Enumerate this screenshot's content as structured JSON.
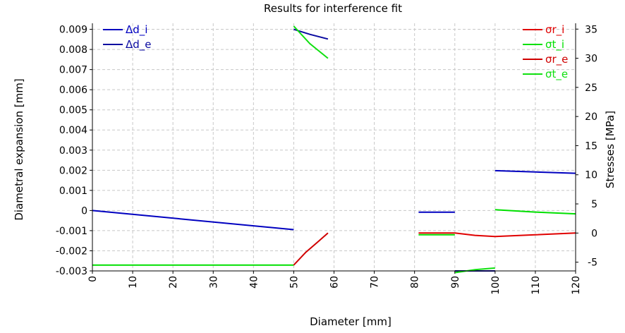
{
  "chart_data": {
    "type": "line",
    "title": "Results for interference fit",
    "xlabel": "Diameter [mm]",
    "ylabel_left": "Diametral expansion [mm]",
    "ylabel_right": "Stresses [MPa]",
    "xlim": [
      0,
      120
    ],
    "ylim_left": [
      -0.003,
      0.0093
    ],
    "ylim_right": [
      -6.5,
      36
    ],
    "x_ticks": [
      "0",
      "10",
      "20",
      "30",
      "40",
      "50",
      "60",
      "70",
      "80",
      "90",
      "100",
      "110",
      "120"
    ],
    "y_left_ticks": [
      "0.009",
      "0.008",
      "0.007",
      "0.006",
      "0.005",
      "0.004",
      "0.003",
      "0.002",
      "0.001",
      "0",
      "-0.001",
      "-0.002",
      "-0.003"
    ],
    "y_right_ticks": [
      "35",
      "30",
      "25",
      "20",
      "15",
      "10",
      "5",
      "0",
      "-5"
    ],
    "grid": true,
    "legend_left": "top-left",
    "legend_right": "top-right",
    "colors": {
      "d_i": "#0000c0",
      "d_e": "#0a0aa0",
      "sr_i": "#e00000",
      "st_i": "#00e000",
      "sr_e": "#d00000",
      "st_e": "#10e010"
    },
    "series": [
      {
        "name": "Δd_i",
        "axis": "left",
        "color_key": "d_i",
        "segments": [
          [
            [
              0,
              0.0
            ],
            [
              50,
              -0.00095
            ]
          ],
          [
            [
              81,
              -8e-05
            ],
            [
              90,
              -8e-05
            ]
          ],
          [
            [
              100,
              0.00198
            ],
            [
              120,
              0.00185
            ]
          ]
        ]
      },
      {
        "name": "Δd_e",
        "axis": "left",
        "color_key": "d_e",
        "segments": [
          [
            [
              50,
              0.009
            ],
            [
              54,
              0.00875
            ],
            [
              58.5,
              0.00852
            ]
          ],
          [
            [
              90,
              -0.003
            ],
            [
              100,
              -0.003
            ]
          ]
        ]
      },
      {
        "name": "σr_i",
        "axis": "right",
        "color_key": "sr_i",
        "segments": [
          [
            [
              81,
              0.0
            ],
            [
              90,
              0.0
            ]
          ],
          [
            [
              90,
              0.0
            ],
            [
              95,
              -0.4
            ],
            [
              100,
              -0.6
            ],
            [
              110,
              -0.3
            ],
            [
              120,
              0.0
            ]
          ]
        ]
      },
      {
        "name": "σt_i",
        "axis": "right",
        "color_key": "st_i",
        "segments": [
          [
            [
              0,
              -5.5
            ],
            [
              50,
              -5.5
            ]
          ],
          [
            [
              81,
              -0.3
            ],
            [
              90,
              -0.3
            ]
          ],
          [
            [
              100,
              4.0
            ],
            [
              110,
              3.6
            ],
            [
              120,
              3.3
            ]
          ]
        ]
      },
      {
        "name": "σr_e",
        "axis": "right",
        "color_key": "sr_e",
        "segments": [
          [
            [
              50,
              -5.5
            ],
            [
              53,
              -3.3
            ],
            [
              56,
              -1.5
            ],
            [
              58.5,
              0.0
            ]
          ]
        ]
      },
      {
        "name": "σt_e",
        "axis": "right",
        "color_key": "st_e",
        "segments": [
          [
            [
              50,
              35.5
            ],
            [
              54,
              32.5
            ],
            [
              58.5,
              30.0
            ]
          ],
          [
            [
              90,
              -6.8
            ],
            [
              95,
              -6.3
            ],
            [
              100,
              -6.0
            ]
          ]
        ]
      }
    ]
  }
}
